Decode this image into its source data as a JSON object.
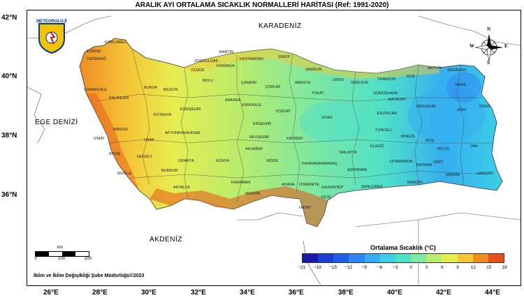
{
  "title": "ARALIK AYI ORTALAMA SICAKLIK NORMALLERİ HARİTASI (Ref: 1991-2020)",
  "lat_labels": [
    "42°N",
    "40°N",
    "38°N",
    "36°N"
  ],
  "lon_labels": [
    "26°E",
    "28°E",
    "30°E",
    "32°E",
    "34°E",
    "36°E",
    "38°E",
    "40°E",
    "42°E",
    "44°E"
  ],
  "seas": {
    "north": "KARADENİZ",
    "west": "EGE DENİZİ",
    "south": "AKDENİZ"
  },
  "logo_text": "METEOROLOJİ",
  "compass": {
    "n": "N",
    "s": "S",
    "e": "E",
    "w": "W"
  },
  "scalebar": {
    "unit": "km",
    "labels": [
      "0",
      "100",
      "200"
    ]
  },
  "legend": {
    "title": "Ortalama Sıcaklık (°C)",
    "ticks": [
      "−21",
      "−18",
      "−15",
      "−12",
      "−9",
      "−6",
      "−3",
      "0",
      "3",
      "6",
      "9",
      "12",
      "15",
      "18"
    ],
    "colors": [
      "#1a1aa6",
      "#1f3fd0",
      "#2060e8",
      "#2e86f0",
      "#36aef0",
      "#3ccfe6",
      "#4fe0c8",
      "#7ee8a0",
      "#b8ec6c",
      "#e8ec50",
      "#f4c838",
      "#f08c24",
      "#e4541a"
    ]
  },
  "credit": "İklim ve İklim Değişikliği Şube Müdürlüğü©2023",
  "provinces": [
    "KIRKLARELİ",
    "EDİRNE",
    "TEKİRDAĞ",
    "ÇANAKKALE",
    "BALIKESİR",
    "BURSA",
    "BİLECİK",
    "KÜTAHYA",
    "MANİSA",
    "İZMİR",
    "AYDIN",
    "MUĞLA",
    "DENİZLİ",
    "UŞAK",
    "AFYONKARAHİSAR",
    "ESKİŞEHİR",
    "BOLU",
    "DÜZCE",
    "ZONGULDAK",
    "BARTIN",
    "KARABÜK",
    "KASTAMONU",
    "SİNOP",
    "SAMSUN",
    "ÇORUM",
    "AMASYA",
    "TOKAT",
    "ORDU",
    "GİRESUN",
    "TRABZON",
    "RİZE",
    "ARTVİN",
    "ARDAHAN",
    "KARS",
    "IĞDIR",
    "AĞRI",
    "ERZURUM",
    "BAYBURT",
    "GÜMÜŞHANE",
    "ERZİNCAN",
    "SİVAS",
    "YOZGAT",
    "KIRIKKALE",
    "ANKARA",
    "ÇANKIRI",
    "KIRŞEHİR",
    "NEVŞEHİR",
    "AKSARAY",
    "KAYSERİ",
    "NİĞDE",
    "KONYA",
    "KARAMAN",
    "ISPARTA",
    "BURDUR",
    "ANTALYA",
    "MERSİN",
    "ADANA",
    "OSMANİYE",
    "HATAY",
    "GAZİANTEP",
    "KAHRAMANMARAŞ",
    "ADIYAMAN",
    "MALATYA",
    "ELAZIĞ",
    "TUNCELİ",
    "BİNGÖL",
    "MUŞ",
    "BİTLİS",
    "VAN",
    "HAKKARİ",
    "ŞIRNAK",
    "SİİRT",
    "BATMAN",
    "DİYARBAKIR",
    "MARDİN",
    "ŞANLIURFA",
    "KİLİS"
  ]
}
